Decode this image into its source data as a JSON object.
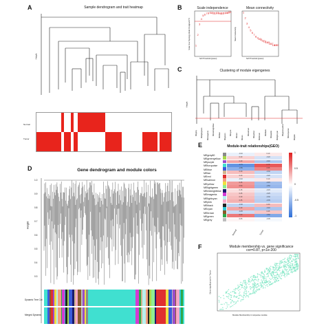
{
  "panels": {
    "A": {
      "letter": "A",
      "title": "Sample dendrogram and trait heatmap",
      "ylabel": "Height",
      "traits": [
        "Normal",
        "Tumor"
      ]
    },
    "B": {
      "letter": "B",
      "left_title": "Scale independence",
      "right_title": "Mean connectivity",
      "left_xlabel": "Soft Threshold (power)",
      "right_xlabel": "Soft Threshold (power)",
      "left_ylabel": "Scale Free Topology Model Fit,signed R^2",
      "right_ylabel": "Mean Connectivity"
    },
    "C": {
      "letter": "C",
      "title": "Clustering of module eigengenes",
      "ylabel": "Height",
      "modules": [
        "MEgrey",
        "MElightgreen",
        "MEmagenta",
        "MEmidnightblue",
        "MEblue",
        "MEgreen",
        "MEcyan",
        "MEred",
        "MEtan",
        "MEsalmon",
        "MEyellow",
        "MEbrown",
        "MEblack",
        "MEpurple",
        "MElightcyan",
        "MEgreenyellow",
        "MEturquoise",
        "MEpink"
      ]
    },
    "D": {
      "letter": "D",
      "title": "Gene dendrogram and module colors",
      "ylabel": "Height",
      "yticks": [
        "1.0",
        "0.9",
        "0.8",
        "0.7",
        "0.6",
        "0.5",
        "0.4",
        "0.3"
      ],
      "rows": [
        "Dynamic Tree Cut",
        "Merged Dynamic"
      ]
    },
    "E": {
      "letter": "E",
      "title": "Module-trait relationships(GEO)",
      "columns": [
        "Normal",
        "Tumor"
      ],
      "legend_ticks": [
        "1",
        "0.5",
        "0",
        "-0.5",
        "-1"
      ]
    },
    "F": {
      "letter": "F",
      "title": "Module membership vs. gene significance",
      "subtitle": "cor=0.87, p<1e-200",
      "xlabel": "Module Membership in turquoise module",
      "ylabel": "Gene significance for Tumor"
    }
  },
  "chart_data": [
    {
      "type": "scatter",
      "panel": "B-left",
      "title": "Scale independence",
      "xlabel": "Soft Threshold (power)",
      "ylabel": "Scale Free Topology Model Fit,signed R^2",
      "x": [
        1,
        2,
        3,
        4,
        5,
        6,
        7,
        8,
        9,
        10,
        11,
        12,
        13,
        14,
        15,
        16,
        17,
        18,
        19,
        20
      ],
      "values": [
        0.1,
        0.35,
        0.6,
        0.72,
        0.8,
        0.83,
        0.85,
        0.86,
        0.87,
        0.87,
        0.86,
        0.86,
        0.87,
        0.86,
        0.85,
        0.86,
        0.86,
        0.87,
        0.87,
        0.88
      ]
    },
    {
      "type": "scatter",
      "panel": "B-right",
      "title": "Mean connectivity",
      "xlabel": "Soft Threshold (power)",
      "ylabel": "Mean Connectivity",
      "x": [
        1,
        2,
        3,
        4,
        5,
        6,
        7,
        8,
        9,
        10,
        11,
        12,
        13,
        14,
        15,
        16,
        17,
        18,
        19,
        20
      ],
      "values": [
        600,
        250,
        110,
        60,
        38,
        25,
        18,
        14,
        11,
        9,
        8,
        7,
        6,
        5,
        5,
        4,
        4,
        3,
        3,
        3
      ]
    },
    {
      "type": "heatmap",
      "panel": "E",
      "title": "Module-trait relationships(GEO)",
      "columns": [
        "Normal",
        "Tumor"
      ],
      "rows": [
        "MEgrey60",
        "MEgreenyellow",
        "MEpurple",
        "MEturquoise",
        "MEblue",
        "MEtan",
        "MEred",
        "MEsalmon",
        "MEyellow",
        "MElightgreen",
        "MEmidnightblue",
        "MEmagenta",
        "MElightcyan",
        "MEpink",
        "MEblack",
        "MEcyan",
        "MEbrown",
        "MEgreen",
        "MEgrey"
      ],
      "values": [
        [
          -0.1,
          0.1
        ],
        [
          0.2,
          -0.2
        ],
        [
          0.4,
          -0.4
        ],
        [
          -0.75,
          0.75
        ],
        [
          -0.55,
          0.55
        ],
        [
          0.3,
          -0.3
        ],
        [
          0.2,
          -0.2
        ],
        [
          -0.1,
          0.1
        ],
        [
          0.45,
          -0.45
        ],
        [
          0.5,
          -0.5
        ],
        [
          0.15,
          -0.15
        ],
        [
          0.25,
          -0.25
        ],
        [
          0.3,
          -0.3
        ],
        [
          0.35,
          -0.35
        ],
        [
          -0.3,
          0.3
        ],
        [
          0.4,
          -0.4
        ],
        [
          -0.25,
          0.25
        ],
        [
          0.6,
          -0.6
        ],
        [
          0.05,
          -0.05
        ]
      ],
      "row_colors": [
        "#8a8a8a",
        "#a8d84a",
        "#9b4cc9",
        "#40e0d0",
        "#3b5bdb",
        "#d2b48c",
        "#e03030",
        "#f29f80",
        "#f0e040",
        "#90ee90",
        "#1a1a6e",
        "#d43bd4",
        "#b8f0f0",
        "#f7a8c8",
        "#222222",
        "#2fc8d8",
        "#8b5a2b",
        "#2ea84a",
        "#bdbdbd"
      ]
    },
    {
      "type": "scatter",
      "panel": "F",
      "title": "Module membership vs. gene significance",
      "xlabel": "Module Membership in turquoise module",
      "ylabel": "Gene significance for Tumor",
      "xlim": [
        0,
        1
      ],
      "ylim": [
        0,
        1
      ],
      "trend": {
        "slope": 0.8,
        "intercept": 0.1
      },
      "point_color": "#7fe6c4"
    }
  ],
  "colors": {
    "heat_pos": "#e02020",
    "heat_neg": "#2e6fd8",
    "trait_red": "#e8241c",
    "threshold_line": "#e02020",
    "accent_points": "#e02020"
  }
}
